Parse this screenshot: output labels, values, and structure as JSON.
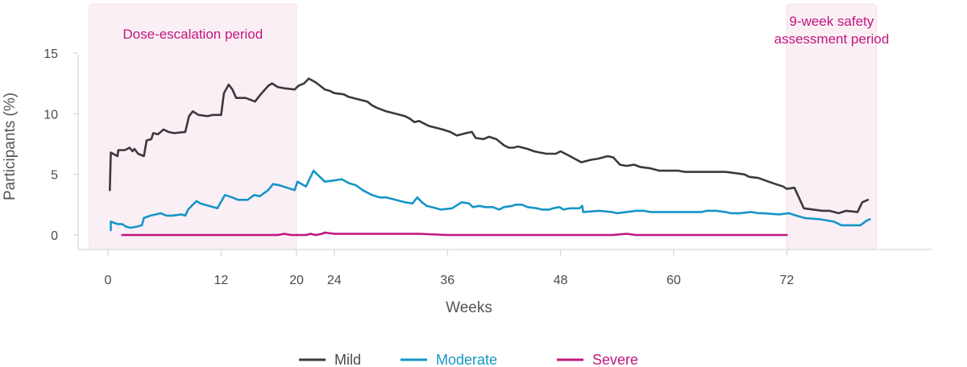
{
  "chart_data": {
    "type": "line",
    "xlabel": "Weeks",
    "ylabel": "Participants (%)",
    "xlim": [
      -2,
      82
    ],
    "ylim": [
      -1.2,
      19
    ],
    "x_ticks": [
      0,
      12,
      20,
      24,
      36,
      48,
      60,
      72
    ],
    "y_ticks": [
      0,
      5,
      10,
      15
    ],
    "grid": false,
    "legend_position": "bottom-center",
    "periods": [
      {
        "label_lines": [
          "Dose-escalation period"
        ],
        "x_start": -2,
        "x_end": 20
      },
      {
        "label_lines": [
          "9-week safety",
          "assessment period"
        ],
        "x_start": 72,
        "x_end": 81.5
      }
    ],
    "period_label_color": "#c0177f",
    "period_fill": "#fbeff6",
    "series": [
      {
        "name": "Mild",
        "color": "#3a3a3c",
        "points": [
          [
            0.2,
            3.7
          ],
          [
            0.3,
            6.8
          ],
          [
            1,
            6.5
          ],
          [
            1.1,
            7.0
          ],
          [
            1.8,
            7.0
          ],
          [
            2.3,
            7.2
          ],
          [
            2.6,
            6.9
          ],
          [
            2.8,
            7.1
          ],
          [
            3.2,
            6.7
          ],
          [
            3.8,
            6.5
          ],
          [
            4.1,
            7.8
          ],
          [
            4.6,
            7.9
          ],
          [
            4.8,
            8.4
          ],
          [
            5.3,
            8.3
          ],
          [
            5.9,
            8.7
          ],
          [
            6.4,
            8.5
          ],
          [
            7.0,
            8.4
          ],
          [
            8.2,
            8.5
          ],
          [
            8.6,
            9.8
          ],
          [
            9.0,
            10.2
          ],
          [
            9.6,
            9.9
          ],
          [
            10.6,
            9.8
          ],
          [
            11.1,
            9.9
          ],
          [
            12.0,
            9.9
          ],
          [
            12.3,
            11.7
          ],
          [
            12.8,
            12.4
          ],
          [
            13.2,
            12.0
          ],
          [
            13.6,
            11.3
          ],
          [
            14.6,
            11.3
          ],
          [
            15.6,
            11.0
          ],
          [
            16.2,
            11.6
          ],
          [
            17.0,
            12.3
          ],
          [
            17.4,
            12.5
          ],
          [
            18.0,
            12.2
          ],
          [
            18.7,
            12.1
          ],
          [
            19.8,
            12.0
          ],
          [
            20.2,
            12.3
          ],
          [
            20.8,
            12.5
          ],
          [
            21.3,
            12.9
          ],
          [
            22.0,
            12.6
          ],
          [
            22.5,
            12.3
          ],
          [
            23.0,
            12.0
          ],
          [
            23.5,
            11.9
          ],
          [
            24.0,
            11.7
          ],
          [
            25.0,
            11.6
          ],
          [
            25.5,
            11.4
          ],
          [
            26.0,
            11.3
          ],
          [
            26.5,
            11.2
          ],
          [
            27.0,
            11.1
          ],
          [
            27.5,
            11.0
          ],
          [
            28.0,
            10.7
          ],
          [
            28.5,
            10.5
          ],
          [
            29.5,
            10.2
          ],
          [
            30.5,
            10.0
          ],
          [
            31.5,
            9.8
          ],
          [
            32.0,
            9.6
          ],
          [
            32.5,
            9.3
          ],
          [
            33.0,
            9.4
          ],
          [
            34.0,
            9.0
          ],
          [
            35.0,
            8.8
          ],
          [
            35.5,
            8.7
          ],
          [
            36.3,
            8.5
          ],
          [
            37.0,
            8.2
          ],
          [
            37.5,
            8.3
          ],
          [
            38.0,
            8.4
          ],
          [
            38.6,
            8.5
          ],
          [
            39.0,
            8.0
          ],
          [
            39.8,
            7.9
          ],
          [
            40.4,
            8.1
          ],
          [
            41.2,
            7.9
          ],
          [
            42.0,
            7.4
          ],
          [
            42.5,
            7.2
          ],
          [
            43.0,
            7.2
          ],
          [
            43.5,
            7.3
          ],
          [
            44.5,
            7.1
          ],
          [
            45.2,
            6.9
          ],
          [
            45.8,
            6.8
          ],
          [
            46.5,
            6.7
          ],
          [
            47.5,
            6.7
          ],
          [
            48.0,
            6.9
          ],
          [
            49.0,
            6.5
          ],
          [
            50.2,
            6.0
          ],
          [
            51.2,
            6.2
          ],
          [
            52.0,
            6.3
          ],
          [
            53.0,
            6.5
          ],
          [
            53.6,
            6.4
          ],
          [
            54.3,
            5.8
          ],
          [
            55.0,
            5.7
          ],
          [
            55.8,
            5.8
          ],
          [
            56.5,
            5.6
          ],
          [
            57.5,
            5.5
          ],
          [
            58.5,
            5.3
          ],
          [
            59.5,
            5.3
          ],
          [
            60.5,
            5.3
          ],
          [
            61.2,
            5.2
          ],
          [
            62.5,
            5.2
          ],
          [
            64.0,
            5.2
          ],
          [
            65.5,
            5.2
          ],
          [
            66.5,
            5.1
          ],
          [
            67.5,
            5.0
          ],
          [
            68.0,
            4.8
          ],
          [
            69.0,
            4.7
          ],
          [
            69.7,
            4.5
          ],
          [
            70.8,
            4.2
          ],
          [
            71.6,
            4.0
          ],
          [
            72.0,
            3.8
          ],
          [
            72.8,
            3.9
          ],
          [
            73.8,
            2.2
          ],
          [
            74.8,
            2.1
          ],
          [
            75.8,
            2.0
          ],
          [
            76.5,
            2.0
          ],
          [
            77.0,
            1.9
          ],
          [
            77.5,
            1.8
          ],
          [
            78.3,
            2.0
          ],
          [
            79.5,
            1.9
          ],
          [
            80.0,
            2.7
          ],
          [
            80.6,
            2.9
          ]
        ]
      },
      {
        "name": "Moderate",
        "color": "#1596c6",
        "points": [
          [
            0.3,
            0.4
          ],
          [
            0.3,
            1.1
          ],
          [
            1.0,
            0.9
          ],
          [
            1.5,
            0.9
          ],
          [
            1.9,
            0.7
          ],
          [
            2.4,
            0.6
          ],
          [
            3.1,
            0.7
          ],
          [
            3.6,
            0.8
          ],
          [
            3.8,
            1.4
          ],
          [
            4.5,
            1.6
          ],
          [
            5.1,
            1.7
          ],
          [
            5.6,
            1.8
          ],
          [
            6.2,
            1.6
          ],
          [
            6.8,
            1.6
          ],
          [
            7.8,
            1.7
          ],
          [
            8.2,
            1.6
          ],
          [
            8.5,
            2.1
          ],
          [
            9.0,
            2.5
          ],
          [
            9.4,
            2.8
          ],
          [
            9.8,
            2.6
          ],
          [
            11.6,
            2.2
          ],
          [
            12.4,
            3.3
          ],
          [
            13.2,
            3.1
          ],
          [
            13.8,
            2.9
          ],
          [
            14.8,
            2.9
          ],
          [
            15.5,
            3.3
          ],
          [
            16.1,
            3.2
          ],
          [
            17.0,
            3.7
          ],
          [
            17.5,
            4.2
          ],
          [
            18.2,
            4.1
          ],
          [
            19.4,
            3.8
          ],
          [
            19.8,
            3.7
          ],
          [
            20.1,
            4.4
          ],
          [
            21.0,
            4.0
          ],
          [
            21.8,
            5.3
          ],
          [
            22.2,
            5.0
          ],
          [
            23.0,
            4.4
          ],
          [
            24.0,
            4.5
          ],
          [
            24.8,
            4.6
          ],
          [
            25.5,
            4.3
          ],
          [
            26.3,
            4.1
          ],
          [
            27.0,
            3.7
          ],
          [
            28.0,
            3.3
          ],
          [
            28.8,
            3.1
          ],
          [
            29.5,
            3.1
          ],
          [
            30.5,
            2.9
          ],
          [
            31.5,
            2.7
          ],
          [
            32.3,
            2.6
          ],
          [
            32.8,
            3.1
          ],
          [
            33.3,
            2.7
          ],
          [
            33.8,
            2.4
          ],
          [
            34.8,
            2.2
          ],
          [
            35.3,
            2.1
          ],
          [
            36.5,
            2.2
          ],
          [
            37.1,
            2.5
          ],
          [
            37.5,
            2.7
          ],
          [
            38.3,
            2.6
          ],
          [
            38.7,
            2.3
          ],
          [
            39.4,
            2.4
          ],
          [
            40.0,
            2.3
          ],
          [
            40.8,
            2.3
          ],
          [
            41.5,
            2.1
          ],
          [
            42.0,
            2.3
          ],
          [
            42.9,
            2.4
          ],
          [
            43.2,
            2.5
          ],
          [
            43.9,
            2.5
          ],
          [
            44.5,
            2.3
          ],
          [
            45.5,
            2.2
          ],
          [
            46.0,
            2.1
          ],
          [
            46.8,
            2.1
          ],
          [
            47.2,
            2.2
          ],
          [
            47.9,
            2.3
          ],
          [
            48.3,
            2.1
          ],
          [
            49.0,
            2.2
          ],
          [
            50.0,
            2.2
          ],
          [
            50.3,
            2.4
          ],
          [
            50.4,
            1.9
          ],
          [
            52.1,
            2.0
          ],
          [
            53.4,
            1.9
          ],
          [
            54.0,
            1.8
          ],
          [
            55.0,
            1.9
          ],
          [
            56.0,
            2.0
          ],
          [
            56.8,
            2.0
          ],
          [
            57.5,
            1.9
          ],
          [
            58.4,
            1.9
          ],
          [
            59.5,
            1.9
          ],
          [
            60.8,
            1.9
          ],
          [
            62.2,
            1.9
          ],
          [
            63.0,
            1.9
          ],
          [
            63.5,
            2.0
          ],
          [
            64.5,
            2.0
          ],
          [
            65.5,
            1.9
          ],
          [
            66.0,
            1.8
          ],
          [
            67.0,
            1.8
          ],
          [
            68.2,
            1.9
          ],
          [
            69.0,
            1.8
          ],
          [
            69.5,
            1.8
          ],
          [
            71.2,
            1.7
          ],
          [
            72.2,
            1.8
          ],
          [
            73.0,
            1.6
          ],
          [
            73.9,
            1.4
          ],
          [
            75.5,
            1.3
          ],
          [
            77.0,
            1.1
          ],
          [
            77.8,
            0.8
          ],
          [
            79.8,
            0.8
          ],
          [
            80.5,
            1.2
          ],
          [
            80.8,
            1.3
          ]
        ]
      },
      {
        "name": "Severe",
        "color": "#c0177f",
        "points": [
          [
            1.5,
            0.0
          ],
          [
            5.0,
            0.0
          ],
          [
            8.2,
            0.0
          ],
          [
            10.0,
            0.0
          ],
          [
            12.0,
            0.0
          ],
          [
            14.0,
            0.0
          ],
          [
            16.0,
            0.0
          ],
          [
            18.0,
            0.0
          ],
          [
            18.7,
            0.1
          ],
          [
            19.4,
            0.0
          ],
          [
            20.0,
            0.0
          ],
          [
            20.5,
            0.0
          ],
          [
            21.0,
            0.0
          ],
          [
            21.5,
            0.1
          ],
          [
            22.0,
            0.0
          ],
          [
            22.7,
            0.1
          ],
          [
            23.0,
            0.2
          ],
          [
            24.0,
            0.1
          ],
          [
            25.0,
            0.1
          ],
          [
            27.0,
            0.1
          ],
          [
            30.0,
            0.1
          ],
          [
            33.0,
            0.1
          ],
          [
            36.0,
            0.0
          ],
          [
            36.2,
            0.0
          ],
          [
            38.0,
            0.0
          ],
          [
            40.0,
            0.0
          ],
          [
            42.0,
            0.0
          ],
          [
            44.0,
            0.0
          ],
          [
            46.0,
            0.0
          ],
          [
            48.0,
            0.0
          ],
          [
            50.0,
            0.0
          ],
          [
            52.0,
            0.0
          ],
          [
            53.5,
            0.0
          ],
          [
            55.0,
            0.1
          ],
          [
            56.0,
            0.0
          ],
          [
            58.0,
            0.0
          ],
          [
            60.0,
            0.0
          ],
          [
            62.0,
            0.0
          ],
          [
            64.0,
            0.0
          ],
          [
            66.0,
            0.0
          ],
          [
            68.0,
            0.0
          ],
          [
            70.0,
            0.0
          ],
          [
            72.0,
            0.0
          ]
        ]
      }
    ]
  }
}
